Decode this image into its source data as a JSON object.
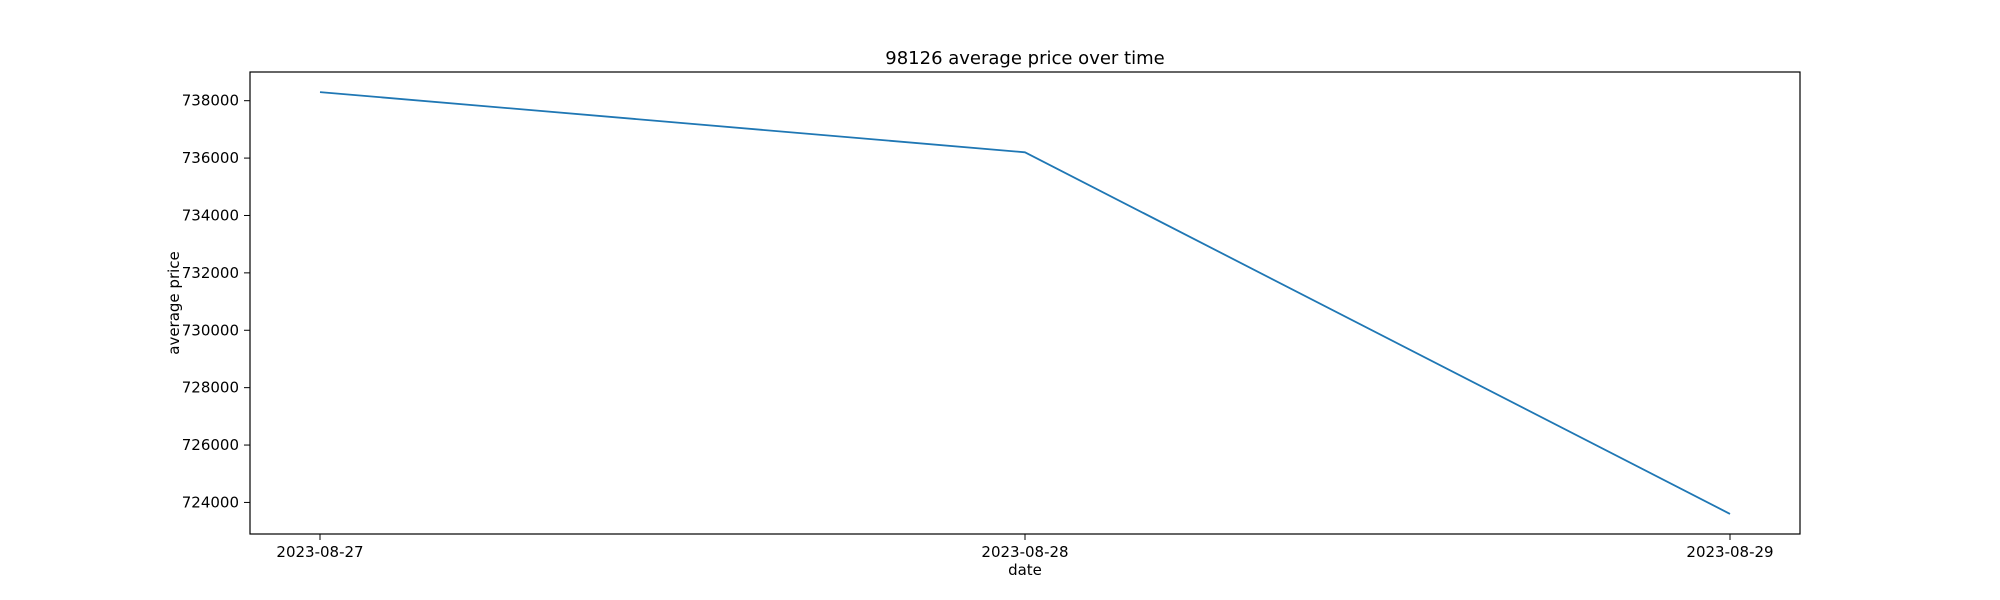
{
  "chart_data": {
    "type": "line",
    "title": "98126 average price over time",
    "xlabel": "date",
    "ylabel": "average price",
    "x": [
      "2023-08-27",
      "2023-08-28",
      "2023-08-29"
    ],
    "series": [
      {
        "name": "average price",
        "values": [
          738300,
          736200,
          723600
        ],
        "color": "#1f77b4"
      }
    ],
    "ylim": [
      722900,
      739000
    ],
    "yticks": [
      724000,
      726000,
      728000,
      730000,
      732000,
      734000,
      736000,
      738000
    ],
    "grid": false,
    "legend": "none"
  }
}
